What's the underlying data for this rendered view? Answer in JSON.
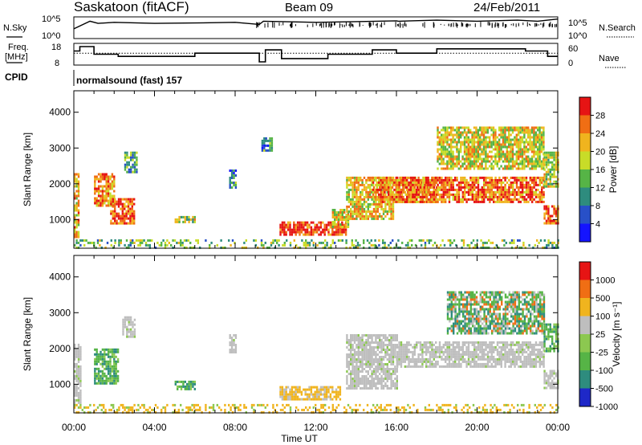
{
  "header": {
    "station": "Saskatoon (fitACF)",
    "beam": "Beam 09",
    "date": "24/Feb/2011"
  },
  "labels": {
    "n_sky": "N.Sky",
    "freq_line1": "Freq.",
    "freq_line2": "[MHz]",
    "cpid": "CPID",
    "n_search": "N.Search",
    "nave": "Nave",
    "program": "normalsound (fast) 157",
    "xlabel": "Time UT"
  },
  "noise_panel": {
    "left_ticks": [
      "10^5",
      "10^0"
    ],
    "right_ticks": [
      "10^5",
      "10^0"
    ],
    "sky_series": [
      [
        0,
        0.55
      ],
      [
        0.8,
        0.2
      ],
      [
        1.2,
        0.3
      ],
      [
        2,
        0.25
      ],
      [
        4,
        0.3
      ],
      [
        6,
        0.28
      ],
      [
        8,
        0.25
      ],
      [
        9.2,
        0.35
      ],
      [
        9.4,
        0.2
      ],
      [
        12,
        0.25
      ],
      [
        14,
        0.22
      ],
      [
        16,
        0.18
      ],
      [
        16.1,
        0.2
      ],
      [
        18,
        0.15
      ],
      [
        20,
        0.2
      ],
      [
        22,
        0.15
      ],
      [
        23,
        0.2
      ],
      [
        24,
        0.1
      ]
    ]
  },
  "freq_panel": {
    "left_ticks": [
      "18",
      "8"
    ],
    "right_ticks": [
      "60",
      "0"
    ],
    "freq_series": [
      [
        0,
        0.35
      ],
      [
        0.3,
        0.35
      ],
      [
        0.3,
        0.15
      ],
      [
        1,
        0.15
      ],
      [
        1,
        0.5
      ],
      [
        2.2,
        0.5
      ],
      [
        2.2,
        0.6
      ],
      [
        6,
        0.6
      ],
      [
        6,
        0.45
      ],
      [
        9.2,
        0.45
      ],
      [
        9.2,
        0.85
      ],
      [
        9.5,
        0.85
      ],
      [
        9.5,
        0.3
      ],
      [
        10.3,
        0.3
      ],
      [
        10.3,
        0.7
      ],
      [
        12.6,
        0.7
      ],
      [
        12.6,
        0.5
      ],
      [
        14.8,
        0.5
      ],
      [
        14.8,
        0.3
      ],
      [
        16,
        0.3
      ],
      [
        16,
        0.45
      ],
      [
        18,
        0.45
      ],
      [
        18,
        0.25
      ],
      [
        22.4,
        0.25
      ],
      [
        22.4,
        0.35
      ],
      [
        23.5,
        0.35
      ],
      [
        23.5,
        0.6
      ],
      [
        24,
        0.6
      ]
    ],
    "nave_series": [
      [
        0,
        0.45
      ],
      [
        24,
        0.45
      ]
    ]
  },
  "chart_data": [
    {
      "type": "heatmap",
      "name": "power",
      "x_range": [
        0,
        24
      ],
      "x_ticks": [
        "00:00",
        "04:00",
        "08:00",
        "12:00",
        "16:00",
        "20:00",
        "00:00"
      ],
      "ylabel": "Slant Range [km]",
      "y_range": [
        200,
        4600
      ],
      "y_ticks": [
        1000,
        2000,
        3000,
        4000
      ],
      "colorbar": {
        "title": "Power [dB]",
        "ticks": [
          "4",
          "8",
          "12",
          "16",
          "20",
          "24",
          "28"
        ],
        "colors": [
          "#1414ff",
          "#2850c8",
          "#2e8c7e",
          "#56b446",
          "#c8dc28",
          "#f0b41e",
          "#f06e14",
          "#e61414"
        ]
      },
      "regions": [
        {
          "t": [
            0,
            0.2
          ],
          "r": [
            500,
            2300
          ],
          "level": 0.7
        },
        {
          "t": [
            1.0,
            2.0
          ],
          "r": [
            1400,
            2300
          ],
          "level": 0.75
        },
        {
          "t": [
            1.8,
            3.0
          ],
          "r": [
            900,
            1600
          ],
          "level": 0.85
        },
        {
          "t": [
            2.5,
            3.1
          ],
          "r": [
            2300,
            2900
          ],
          "level": 0.4
        },
        {
          "t": [
            5.0,
            6.0
          ],
          "r": [
            900,
            1100
          ],
          "level": 0.55
        },
        {
          "t": [
            7.7,
            8.0
          ],
          "r": [
            1900,
            2400
          ],
          "level": 0.3
        },
        {
          "t": [
            9.3,
            9.8
          ],
          "r": [
            2900,
            3300
          ],
          "level": 0.3
        },
        {
          "t": [
            10.2,
            13.5
          ],
          "r": [
            550,
            950
          ],
          "level": 0.92
        },
        {
          "t": [
            12.8,
            13.6
          ],
          "r": [
            800,
            1300
          ],
          "level": 0.6
        },
        {
          "t": [
            13.5,
            15.8
          ],
          "r": [
            1000,
            2200
          ],
          "level": 0.65
        },
        {
          "t": [
            14.8,
            18.0
          ],
          "r": [
            1500,
            2200
          ],
          "level": 0.75
        },
        {
          "t": [
            16.0,
            23.3
          ],
          "r": [
            1500,
            2200
          ],
          "level": 0.82
        },
        {
          "t": [
            18.0,
            23.3
          ],
          "r": [
            2400,
            3600
          ],
          "level": 0.6
        },
        {
          "t": [
            23.3,
            24
          ],
          "r": [
            900,
            1400
          ],
          "level": 0.85
        },
        {
          "t": [
            23.3,
            24
          ],
          "r": [
            1900,
            2900
          ],
          "level": 0.55
        },
        {
          "t": [
            0,
            24
          ],
          "r": [
            200,
            450
          ],
          "level": 0.45
        }
      ]
    },
    {
      "type": "heatmap",
      "name": "velocity",
      "x_range": [
        0,
        24
      ],
      "x_ticks": [
        "00:00",
        "04:00",
        "08:00",
        "12:00",
        "16:00",
        "20:00",
        "00:00"
      ],
      "ylabel": "Slant Range [km]",
      "y_range": [
        200,
        4600
      ],
      "y_ticks": [
        1000,
        2000,
        3000,
        4000
      ],
      "colorbar": {
        "title": "Velocity [m s⁻¹]",
        "ticks": [
          "1000",
          "500",
          "100",
          "25",
          "-25",
          "-100",
          "-500",
          "-1000"
        ],
        "colors": [
          "#1e28c8",
          "#2e8c7e",
          "#56b446",
          "#8cc850",
          "#bebebe",
          "#f0b41e",
          "#f06e14",
          "#e61414"
        ]
      },
      "regions": [
        {
          "t": [
            0,
            0.3
          ],
          "r": [
            500,
            2200
          ],
          "cls": "ground"
        },
        {
          "t": [
            1.0,
            2.2
          ],
          "r": [
            1000,
            2000
          ],
          "cls": "toward"
        },
        {
          "t": [
            2.4,
            3.0
          ],
          "r": [
            2300,
            2900
          ],
          "cls": "ground"
        },
        {
          "t": [
            5.0,
            6.0
          ],
          "r": [
            850,
            1100
          ],
          "cls": "toward"
        },
        {
          "t": [
            7.7,
            8.0
          ],
          "r": [
            1900,
            2400
          ],
          "cls": "ground"
        },
        {
          "t": [
            10.2,
            13.2
          ],
          "r": [
            600,
            950
          ],
          "cls": "away"
        },
        {
          "t": [
            13.5,
            16.0
          ],
          "r": [
            900,
            2400
          ],
          "cls": "ground"
        },
        {
          "t": [
            16.0,
            23.3
          ],
          "r": [
            1500,
            2200
          ],
          "cls": "ground"
        },
        {
          "t": [
            18.5,
            23.3
          ],
          "r": [
            2400,
            3600
          ],
          "cls": "mixed"
        },
        {
          "t": [
            23.3,
            24
          ],
          "r": [
            900,
            1400
          ],
          "cls": "ground"
        },
        {
          "t": [
            23.3,
            24
          ],
          "r": [
            1900,
            2700
          ],
          "cls": "toward"
        },
        {
          "t": [
            0,
            24
          ],
          "r": [
            200,
            450
          ],
          "cls": "away_faint"
        }
      ]
    }
  ]
}
